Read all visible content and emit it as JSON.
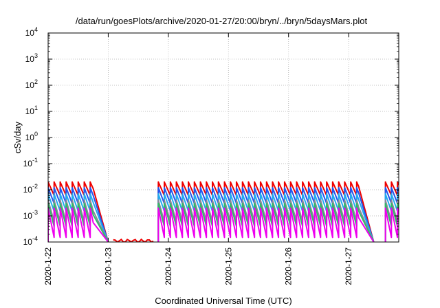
{
  "chart_data": {
    "type": "line",
    "title": "/data/run/goesPlots/archive/2020-01-27/20:00/bryn/../bryn/5daysMars.plot",
    "xlabel": "Coordinated Universal Time (UTC)",
    "ylabel": "cSv/day",
    "y_scale": "log",
    "ylim": [
      0.0001,
      10000
    ],
    "xlim": [
      "2020-01-22 00:00",
      "2020-01-27 20:00"
    ],
    "grid": true,
    "x_ticks": [
      "2020-1-22",
      "2020-1-23",
      "2020-1-24",
      "2020-1-25",
      "2020-1-26",
      "2020-1-27"
    ],
    "y_ticks": [
      {
        "mant": "10",
        "exp": "-4"
      },
      {
        "mant": "10",
        "exp": "-3"
      },
      {
        "mant": "10",
        "exp": "-2"
      },
      {
        "mant": "10",
        "exp": "-1"
      },
      {
        "mant": "10",
        "exp": "0"
      },
      {
        "mant": "10",
        "exp": "1"
      },
      {
        "mant": "10",
        "exp": "2"
      },
      {
        "mant": "10",
        "exp": "3"
      },
      {
        "mant": "10",
        "exp": "4"
      }
    ],
    "active_periods": [
      {
        "start": "2020-01-22 00:00",
        "end": "2020-01-22 18:00"
      },
      {
        "start": "2020-01-23 20:00",
        "end": "2020-01-27 04:00"
      },
      {
        "start": "2020-01-27 14:40",
        "end": "2020-01-27 20:00"
      }
    ],
    "sawtooth_period_hours": 2.4,
    "series": [
      {
        "color": "#ee0000",
        "peak": 0.02,
        "trough": 0.006
      },
      {
        "color": "#2255ee",
        "peak": 0.012,
        "trough": 0.003
      },
      {
        "color": "#22aaee",
        "peak": 0.007,
        "trough": 0.0015
      },
      {
        "color": "#888899",
        "peak": 0.004,
        "trough": 0.0006
      },
      {
        "color": "#33bb66",
        "peak": 0.003,
        "trough": 0.0004
      },
      {
        "color": "#ee00ee",
        "peak": 0.002,
        "trough": 0.00015
      }
    ],
    "baseline_segment": {
      "color": "#ee0000",
      "start": "2020-01-23 02:00",
      "end": "2020-01-23 18:00",
      "value": 0.00011
    }
  }
}
